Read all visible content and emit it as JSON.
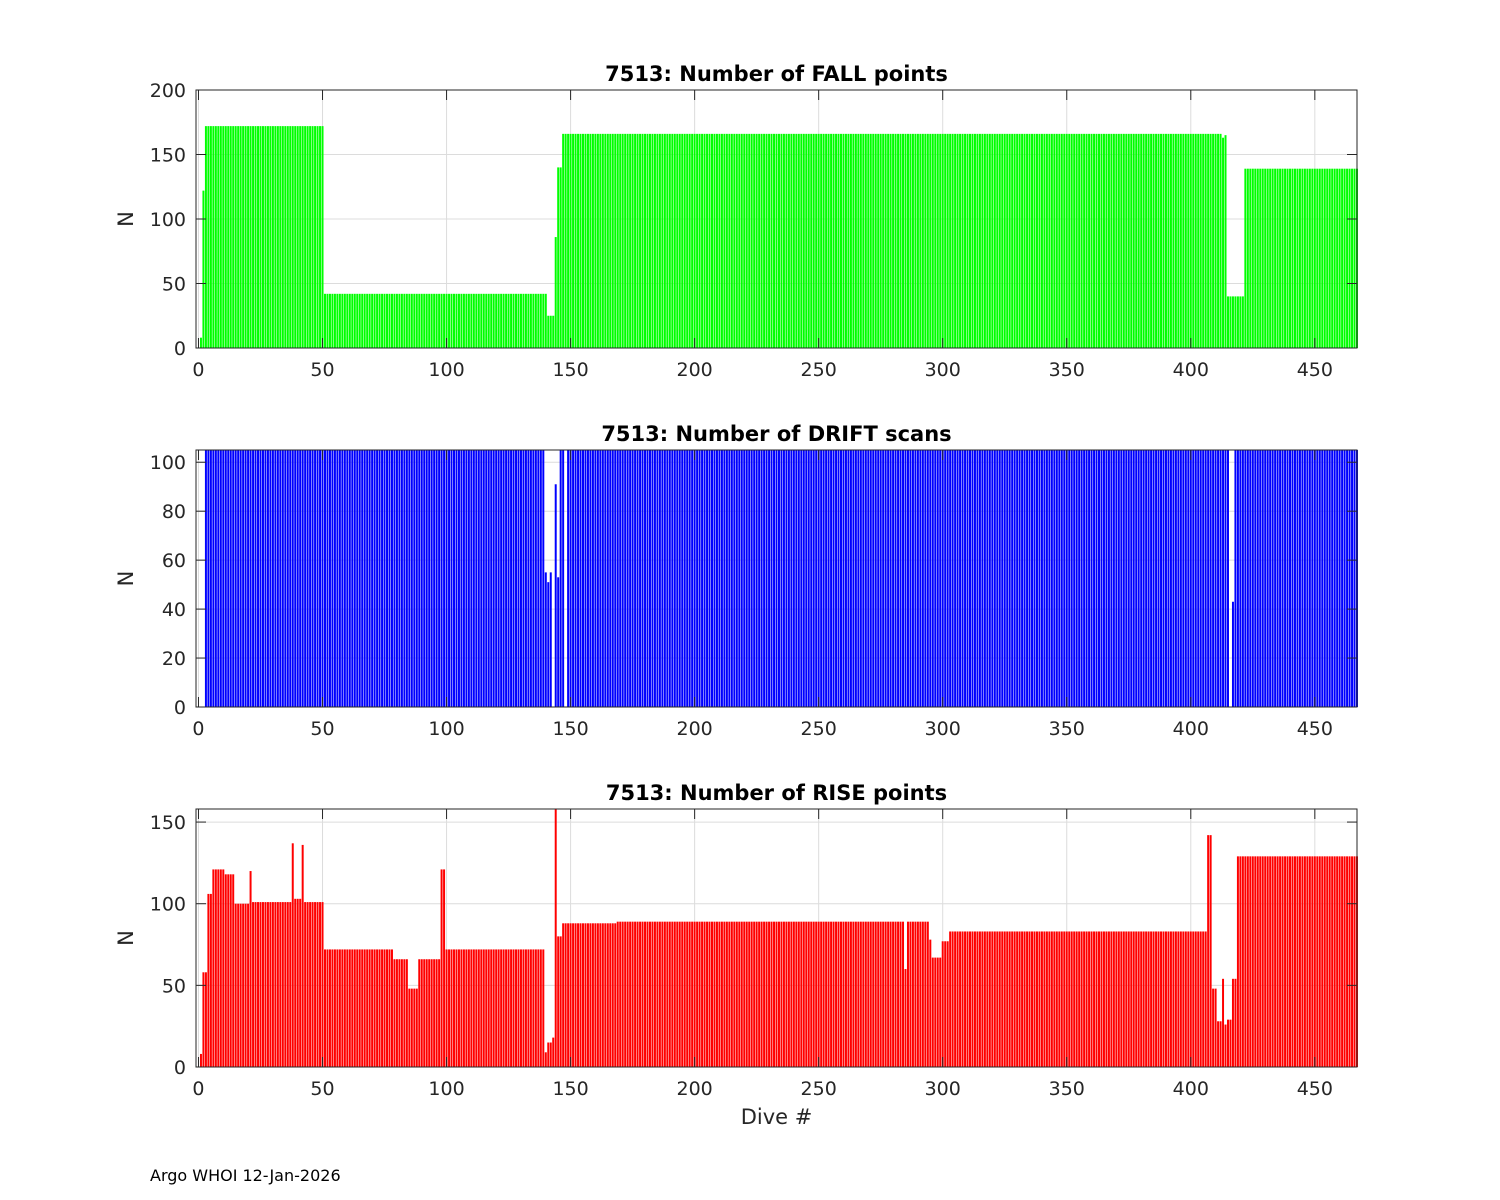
{
  "figure": {
    "footer_org": "Argo WHOI",
    "footer_date": "12-Jan-2026"
  },
  "chart_data": [
    {
      "type": "bar",
      "title": "7513: Number of FALL points",
      "xlabel": "",
      "ylabel": "N",
      "xlim": [
        -1,
        467
      ],
      "ylim": [
        0,
        200
      ],
      "xticks": [
        0,
        50,
        100,
        150,
        200,
        250,
        300,
        350,
        400,
        450
      ],
      "yticks": [
        0,
        50,
        100,
        150,
        200
      ],
      "grid": true,
      "color": "#00ff00",
      "segments": [
        {
          "from": 1,
          "to": 1,
          "value": 8
        },
        {
          "from": 2,
          "to": 2,
          "value": 122
        },
        {
          "from": 3,
          "to": 50,
          "value": 172
        },
        {
          "from": 51,
          "to": 140,
          "value": 42
        },
        {
          "from": 141,
          "to": 143,
          "value": 25
        },
        {
          "from": 144,
          "to": 144,
          "value": 86
        },
        {
          "from": 145,
          "to": 146,
          "value": 140
        },
        {
          "from": 147,
          "to": 412,
          "value": 166
        },
        {
          "from": 413,
          "to": 413,
          "value": 163
        },
        {
          "from": 414,
          "to": 414,
          "value": 165
        },
        {
          "from": 415,
          "to": 421,
          "value": 40
        },
        {
          "from": 422,
          "to": 467,
          "value": 139
        }
      ]
    },
    {
      "type": "bar",
      "title": "7513: Number of DRIFT scans",
      "xlabel": "",
      "ylabel": "N",
      "xlim": [
        -1,
        467
      ],
      "ylim": [
        0,
        105
      ],
      "xticks": [
        0,
        50,
        100,
        150,
        200,
        250,
        300,
        350,
        400,
        450
      ],
      "yticks": [
        0,
        20,
        40,
        60,
        80,
        100
      ],
      "grid": true,
      "color": "#0000ff",
      "segments": [
        {
          "from": 1,
          "to": 2,
          "value": 0
        },
        {
          "from": 3,
          "to": 139,
          "value": 105
        },
        {
          "from": 140,
          "to": 140,
          "value": 55
        },
        {
          "from": 141,
          "to": 141,
          "value": 51
        },
        {
          "from": 142,
          "to": 142,
          "value": 55
        },
        {
          "from": 143,
          "to": 143,
          "value": 0
        },
        {
          "from": 144,
          "to": 144,
          "value": 91
        },
        {
          "from": 145,
          "to": 145,
          "value": 53
        },
        {
          "from": 146,
          "to": 147,
          "value": 105
        },
        {
          "from": 148,
          "to": 148,
          "value": 0
        },
        {
          "from": 149,
          "to": 415,
          "value": 105
        },
        {
          "from": 416,
          "to": 416,
          "value": 0
        },
        {
          "from": 417,
          "to": 417,
          "value": 43
        },
        {
          "from": 418,
          "to": 467,
          "value": 105
        }
      ]
    },
    {
      "type": "bar",
      "title": "7513: Number of RISE points",
      "xlabel": "Dive #",
      "ylabel": "N",
      "xlim": [
        -1,
        467
      ],
      "ylim": [
        0,
        158
      ],
      "xticks": [
        0,
        50,
        100,
        150,
        200,
        250,
        300,
        350,
        400,
        450
      ],
      "yticks": [
        0,
        50,
        100,
        150
      ],
      "grid": true,
      "color": "#ff0000",
      "segments": [
        {
          "from": 1,
          "to": 1,
          "value": 8
        },
        {
          "from": 2,
          "to": 3,
          "value": 58
        },
        {
          "from": 4,
          "to": 5,
          "value": 106
        },
        {
          "from": 6,
          "to": 10,
          "value": 121
        },
        {
          "from": 11,
          "to": 14,
          "value": 118
        },
        {
          "from": 15,
          "to": 20,
          "value": 100
        },
        {
          "from": 21,
          "to": 21,
          "value": 120
        },
        {
          "from": 22,
          "to": 37,
          "value": 101
        },
        {
          "from": 38,
          "to": 38,
          "value": 137
        },
        {
          "from": 39,
          "to": 41,
          "value": 103
        },
        {
          "from": 42,
          "to": 42,
          "value": 136
        },
        {
          "from": 43,
          "to": 50,
          "value": 101
        },
        {
          "from": 51,
          "to": 78,
          "value": 72
        },
        {
          "from": 79,
          "to": 84,
          "value": 66
        },
        {
          "from": 85,
          "to": 88,
          "value": 48
        },
        {
          "from": 89,
          "to": 97,
          "value": 66
        },
        {
          "from": 98,
          "to": 99,
          "value": 121
        },
        {
          "from": 100,
          "to": 139,
          "value": 72
        },
        {
          "from": 140,
          "to": 140,
          "value": 9
        },
        {
          "from": 141,
          "to": 142,
          "value": 15
        },
        {
          "from": 143,
          "to": 143,
          "value": 18
        },
        {
          "from": 144,
          "to": 144,
          "value": 158
        },
        {
          "from": 145,
          "to": 146,
          "value": 80
        },
        {
          "from": 147,
          "to": 168,
          "value": 88
        },
        {
          "from": 169,
          "to": 284,
          "value": 89
        },
        {
          "from": 285,
          "to": 285,
          "value": 60
        },
        {
          "from": 286,
          "to": 294,
          "value": 89
        },
        {
          "from": 295,
          "to": 295,
          "value": 78
        },
        {
          "from": 296,
          "to": 299,
          "value": 67
        },
        {
          "from": 300,
          "to": 302,
          "value": 77
        },
        {
          "from": 303,
          "to": 305,
          "value": 83
        },
        {
          "from": 306,
          "to": 406,
          "value": 83
        },
        {
          "from": 407,
          "to": 408,
          "value": 142
        },
        {
          "from": 409,
          "to": 410,
          "value": 48
        },
        {
          "from": 411,
          "to": 412,
          "value": 28
        },
        {
          "from": 413,
          "to": 413,
          "value": 54
        },
        {
          "from": 414,
          "to": 414,
          "value": 26
        },
        {
          "from": 415,
          "to": 416,
          "value": 29
        },
        {
          "from": 417,
          "to": 418,
          "value": 54
        },
        {
          "from": 419,
          "to": 467,
          "value": 129
        }
      ]
    }
  ]
}
